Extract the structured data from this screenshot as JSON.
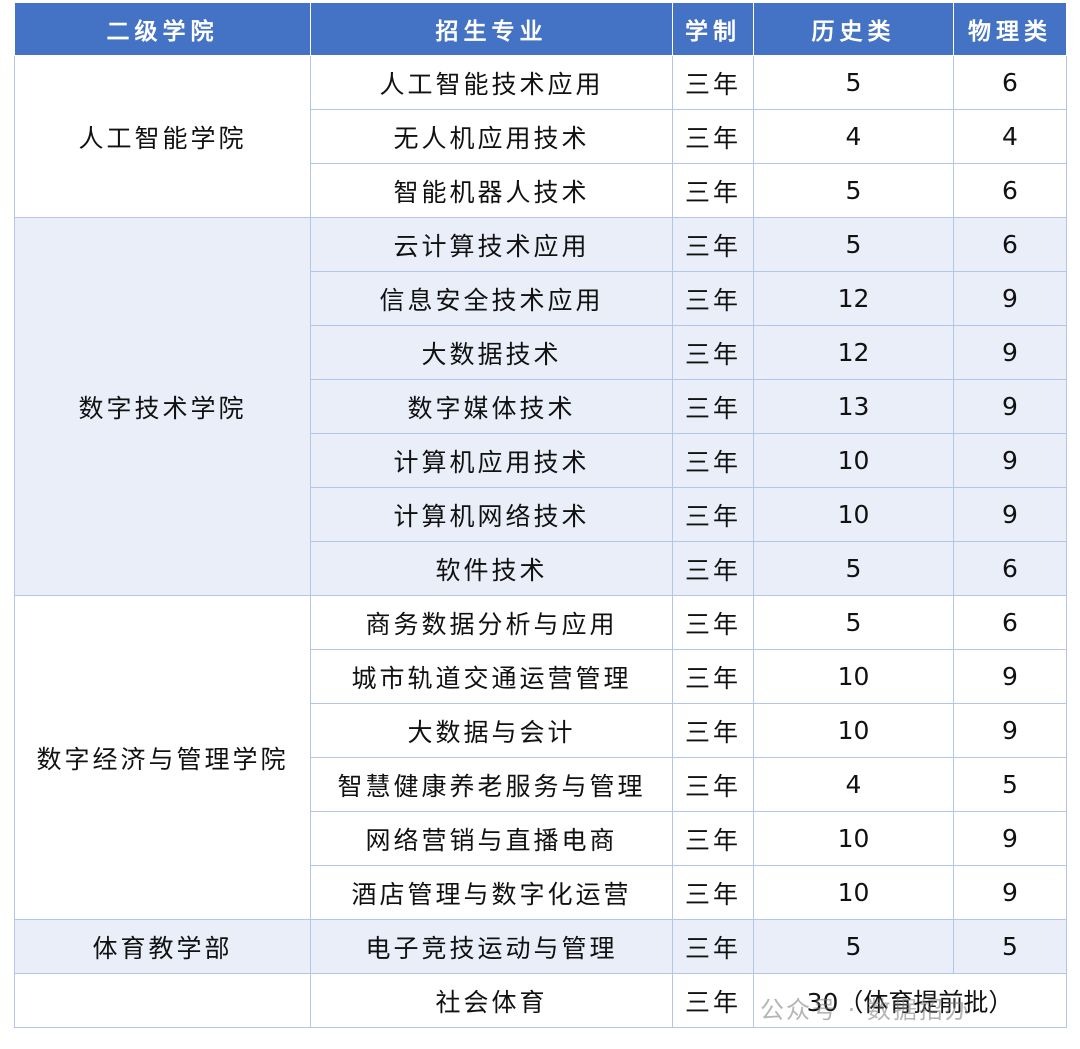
{
  "header": [
    "二级学院",
    "招生专业",
    "学制",
    "历史类",
    "物理类"
  ],
  "groups": [
    {
      "college": "人工智能学院",
      "rows": [
        [
          "人工智能技术应用",
          "三年",
          5,
          6
        ],
        [
          "无人机应用技术",
          "三年",
          4,
          4
        ],
        [
          "智能机器人技术",
          "三年",
          5,
          6
        ]
      ]
    },
    {
      "college": "数字技术学院",
      "rows": [
        [
          "云计算技术应用",
          "三年",
          5,
          6
        ],
        [
          "信息安全技术应用",
          "三年",
          12,
          9
        ],
        [
          "大数据技术",
          "三年",
          12,
          9
        ],
        [
          "数字媒体技术",
          "三年",
          13,
          9
        ],
        [
          "计算机应用技术",
          "三年",
          10,
          9
        ],
        [
          "计算机网络技术",
          "三年",
          10,
          9
        ],
        [
          "软件技术",
          "三年",
          5,
          6
        ]
      ]
    },
    {
      "college": "数字经济与管理学院",
      "rows": [
        [
          "商务数据分析与应用",
          "三年",
          5,
          6
        ],
        [
          "城市轨道交通运营管理",
          "三年",
          10,
          9
        ],
        [
          "大数据与会计",
          "三年",
          10,
          9
        ],
        [
          "智慧健康养老服务与管理",
          "三年",
          4,
          5
        ],
        [
          "网络营销与直播电商",
          "三年",
          10,
          9
        ],
        [
          "酒店管理与数字化运营",
          "三年",
          10,
          9
        ]
      ]
    },
    {
      "college": "体育教学部",
      "rows": [
        [
          "电子竞技运动与管理",
          "三年",
          5,
          5
        ]
      ]
    },
    {
      "college": null,
      "rows": [
        [
          "社会体育",
          "三年",
          "30（体育提前批）"
        ]
      ]
    }
  ],
  "watermark": "公众号 · 数据招办"
}
